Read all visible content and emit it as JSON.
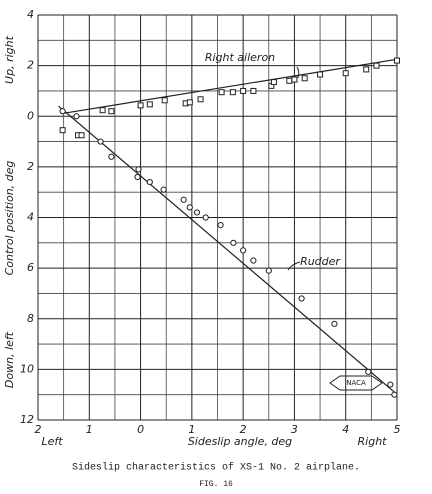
{
  "chart_data": {
    "type": "scatter",
    "caption": "Sideslip characteristics of XS-1 No. 2 airplane.",
    "figure": "FIG. 16",
    "xlabel": "Sideslip angle, deg",
    "ylabel": "Control position, deg",
    "ylabel_up": "Up, right",
    "ylabel_down": "Down, left",
    "x_left_label": "Left",
    "x_right_label": "Right",
    "logo": "NACA",
    "xlim": [
      -2,
      5
    ],
    "ylim": [
      -12,
      4
    ],
    "xticks": [
      {
        "value": -2,
        "label": "2"
      },
      {
        "value": -1,
        "label": "1"
      },
      0,
      1,
      2,
      3,
      4,
      5
    ],
    "yticks": [
      4,
      2,
      0,
      {
        "value": -2,
        "label": "2"
      },
      {
        "value": -4,
        "label": "4"
      },
      {
        "value": -6,
        "label": "6"
      },
      {
        "value": -8,
        "label": "8"
      },
      {
        "value": -10,
        "label": "10"
      },
      {
        "value": -12,
        "label": "12"
      }
    ],
    "x_minor_grid": [
      -1.5,
      -0.5,
      0.5,
      1.5,
      2.5,
      3.5,
      4.5
    ],
    "y_minor_grid": [
      3,
      1,
      -1,
      -3,
      -5,
      -7,
      -9,
      -11
    ],
    "grid": true,
    "series": [
      {
        "name": "Right aileron",
        "marker": "square",
        "color": "#222",
        "x": [
          -1.52,
          -1.22,
          -1.15,
          -0.74,
          -0.57,
          0,
          0.18,
          0.47,
          0.88,
          0.96,
          1.17,
          1.58,
          1.8,
          2.0,
          2.2,
          2.55,
          2.6,
          2.9,
          3.0,
          3.2,
          3.5,
          4.0,
          4.4,
          4.6,
          5.0
        ],
        "y": [
          -0.55,
          -0.75,
          -0.75,
          0.24,
          0.2,
          0.43,
          0.47,
          0.63,
          0.51,
          0.55,
          0.67,
          0.95,
          0.95,
          1.0,
          1.0,
          1.2,
          1.35,
          1.4,
          1.45,
          1.5,
          1.65,
          1.7,
          1.85,
          2.0,
          2.2
        ],
        "line_x": [
          -1.55,
          5.0
        ],
        "line_y": [
          0.1,
          2.25
        ]
      },
      {
        "name": "Rudder",
        "marker": "circle",
        "color": "#222",
        "x": [
          -1.52,
          -1.25,
          -0.78,
          -0.57,
          -0.04,
          -0.06,
          0.18,
          0.45,
          0.84,
          0.96,
          1.1,
          1.27,
          1.56,
          1.81,
          2.0,
          2.2,
          2.5,
          3.14,
          3.78,
          4.44,
          4.87,
          4.95
        ],
        "y": [
          0.2,
          0,
          -1.0,
          -1.6,
          -2.1,
          -2.4,
          -2.6,
          -2.9,
          -3.3,
          -3.6,
          -3.8,
          -4.0,
          -4.3,
          -5.0,
          -5.3,
          -5.7,
          -6.1,
          -7.2,
          -8.2,
          -10.1,
          -10.6,
          -11.0
        ],
        "line_x": [
          -1.6,
          4.95
        ],
        "line_y": [
          0.4,
          -10.9
        ]
      }
    ]
  }
}
